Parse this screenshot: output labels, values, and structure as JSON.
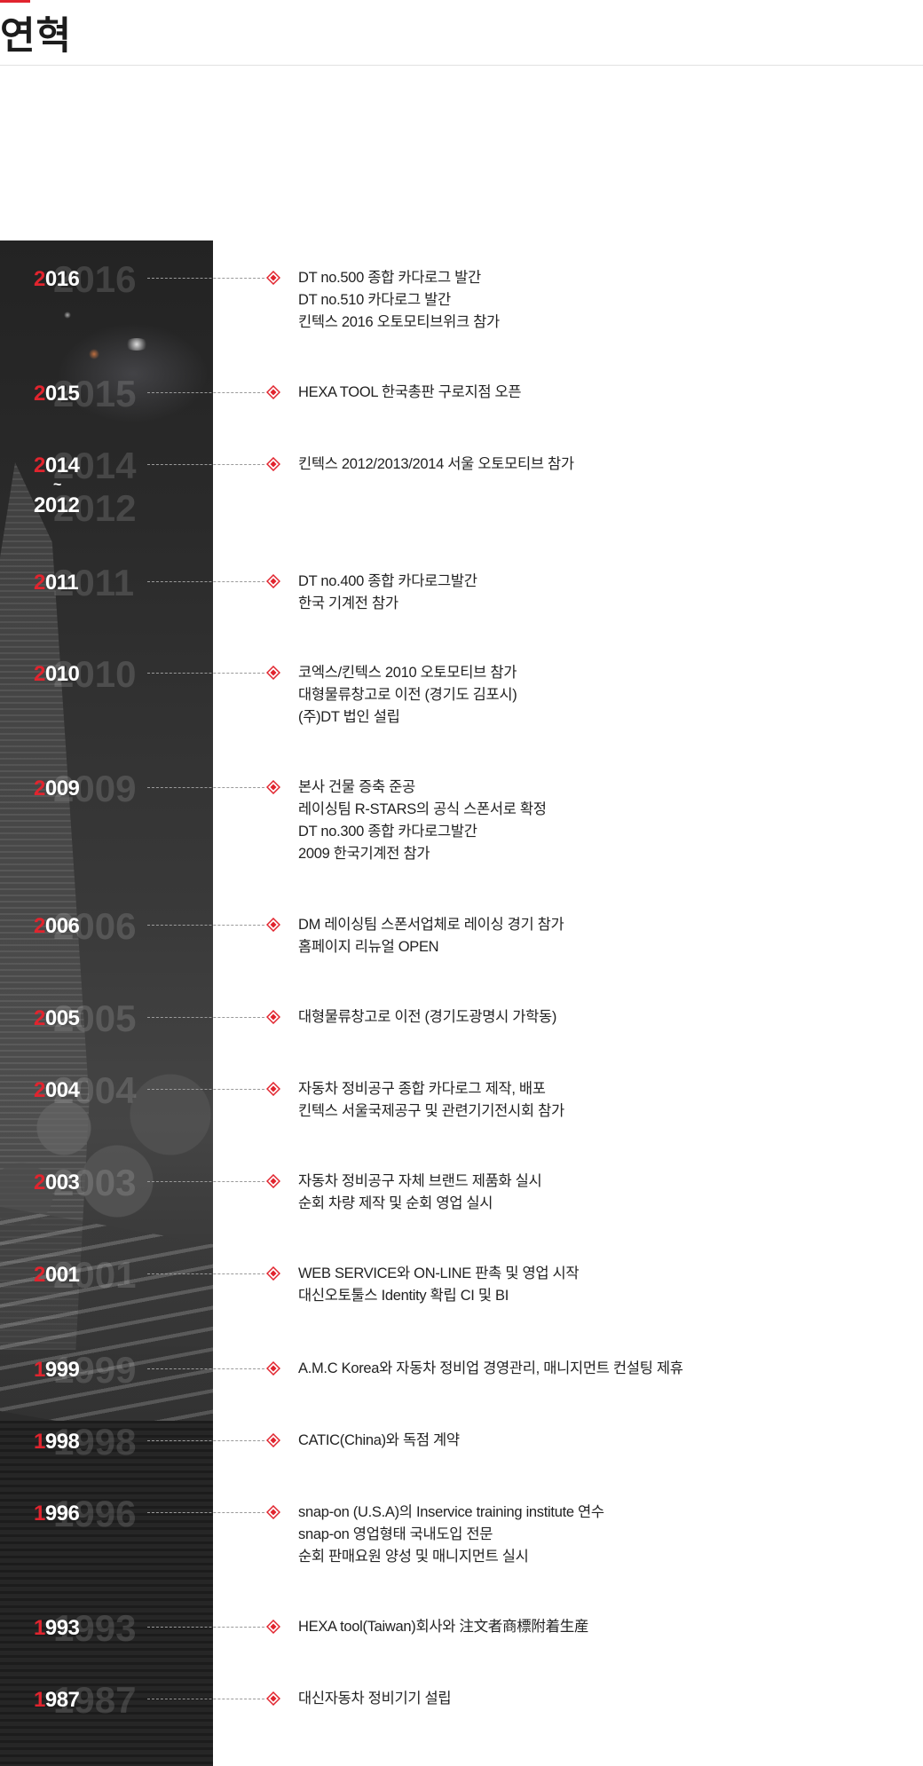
{
  "header": {
    "title": "연혁"
  },
  "colors": {
    "accent": "#e1242e",
    "panel": "#2b2b2b",
    "text": "#222222"
  },
  "timeline": [
    {
      "year": "2016",
      "events": [
        "DT no.500 종합 카다로그 발간",
        "DT no.510 카다로그 발간",
        "킨텍스 2016 오토모티브위크 참가"
      ]
    },
    {
      "year": "2015",
      "events": [
        "HEXA TOOL 한국총판 구로지점 오픈"
      ]
    },
    {
      "year": "2014",
      "year_end": "2012",
      "ghost_end": "2012",
      "events": [
        "킨텍스 2012/2013/2014 서울 오토모티브 참가"
      ]
    },
    {
      "year": "2011",
      "events": [
        "DT no.400 종합 카다로그발간",
        "한국 기계전 참가"
      ]
    },
    {
      "year": "2010",
      "events": [
        "코엑스/킨텍스 2010 오토모티브 참가",
        "대형물류창고로 이전 (경기도 김포시)",
        "(주)DT 법인 설립"
      ]
    },
    {
      "year": "2009",
      "events": [
        "본사 건물 증축 준공",
        "레이싱팀 R-STARS의 공식 스폰서로 확정",
        "DT no.300 종합 카다로그발간",
        "2009 한국기계전 참가"
      ]
    },
    {
      "year": "2006",
      "events": [
        "DM 레이싱팀 스폰서업체로 레이싱 경기 참가",
        "홈페이지 리뉴얼 OPEN"
      ]
    },
    {
      "year": "2005",
      "events": [
        "대형물류창고로 이전 (경기도광명시 가학동)"
      ]
    },
    {
      "year": "2004",
      "events": [
        "자동차 정비공구 종합 카다로그 제작, 배포",
        "킨텍스 서울국제공구 및 관련기기전시회 참가"
      ]
    },
    {
      "year": "2003",
      "events": [
        "자동차 정비공구 자체 브랜드 제품화 실시",
        "순회 차량 제작 및 순회 영업 실시"
      ]
    },
    {
      "year": "2001",
      "events": [
        "WEB SERVICE와 ON-LINE 판촉 및 영업 시작",
        "대신오토툴스 Identity 확립 CI 및 BI"
      ]
    },
    {
      "year": "1999",
      "events": [
        "A.M.C Korea와 자동차 정비업 경영관리, 매니지먼트 컨설팅 제휴"
      ]
    },
    {
      "year": "1998",
      "events": [
        "CATIC(China)와 독점 계약"
      ]
    },
    {
      "year": "1996",
      "events": [
        "snap-on (U.S.A)의 Inservice training institute 연수",
        "snap-on 영업형태 국내도입 전문",
        "순회 판매요원 양성 및 매니지먼트 실시"
      ]
    },
    {
      "year": "1993",
      "events": [
        "HEXA tool(Taiwan)회사와 注文者商標附着生産"
      ]
    },
    {
      "year": "1987",
      "events": [
        "대신자동차 정비기기 설립"
      ]
    }
  ]
}
